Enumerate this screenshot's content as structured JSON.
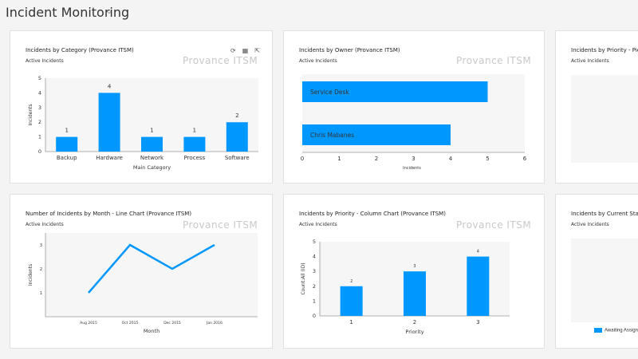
{
  "header": {
    "title": "Incident Monitoring"
  },
  "watermark": "Provance ITSM",
  "colors": {
    "accent": "#0098ff",
    "plot_bg": "#f6f6f6"
  },
  "cards": {
    "category": {
      "title": "Incidents by Category (Provance ITSM)",
      "subtitle": "Active Incidents",
      "icons": [
        "refresh-icon",
        "table-view-icon",
        "expand-icon"
      ],
      "chart_data": {
        "type": "bar",
        "categories": [
          "Backup",
          "Hardware",
          "Network",
          "Process",
          "Software"
        ],
        "values": [
          1,
          4,
          1,
          1,
          2
        ],
        "xlabel": "Main Category",
        "ylabel": "Incidents",
        "ylim": [
          0,
          5
        ],
        "yticks": [
          0,
          1,
          2,
          3,
          4,
          5
        ],
        "data_labels": true
      }
    },
    "owner": {
      "title": "Incidents by Owner (Provance ITSM)",
      "subtitle": "Active Incidents",
      "chart_data": {
        "type": "bar",
        "orientation": "horizontal",
        "categories": [
          "Service Desk",
          "Chris Mabanes"
        ],
        "values": [
          5,
          4
        ],
        "xlabel": "Incidents",
        "xlim": [
          0,
          6
        ],
        "xticks": [
          0,
          1,
          2,
          3,
          4,
          5,
          6
        ]
      }
    },
    "priority_pie": {
      "title": "Incidents by Priority - Pie C",
      "subtitle": "Active Incidents"
    },
    "month": {
      "title": "Number of Incidents by Month - Line Chart (Provance ITSM)",
      "subtitle": "Active Incidents",
      "chart_data": {
        "type": "line",
        "x": [
          "Aug 2015",
          "Oct 2015",
          "Dec 2015",
          "Jan 2016"
        ],
        "values": [
          1,
          3,
          2,
          3
        ],
        "xlabel": "Month",
        "ylabel": "Incidents",
        "ylim": [
          0,
          3.5
        ],
        "yticks": [
          1,
          2,
          3
        ]
      }
    },
    "priority_col": {
      "title": "Incidents by Priority - Column Chart (Provance ITSM)",
      "subtitle": "Active Incidents",
      "chart_data": {
        "type": "bar",
        "categories": [
          "1",
          "2",
          "3"
        ],
        "values": [
          2,
          3,
          4
        ],
        "xlabel": "Priority",
        "ylabel": "Count:All (ID)",
        "ylim": [
          0,
          5
        ],
        "yticks": [
          0,
          1,
          2,
          3,
          4,
          5
        ],
        "data_labels": true
      }
    },
    "status": {
      "title": "Incidents by Current Status",
      "subtitle": "Active Incidents",
      "legend": "Awaiting Assign"
    }
  }
}
